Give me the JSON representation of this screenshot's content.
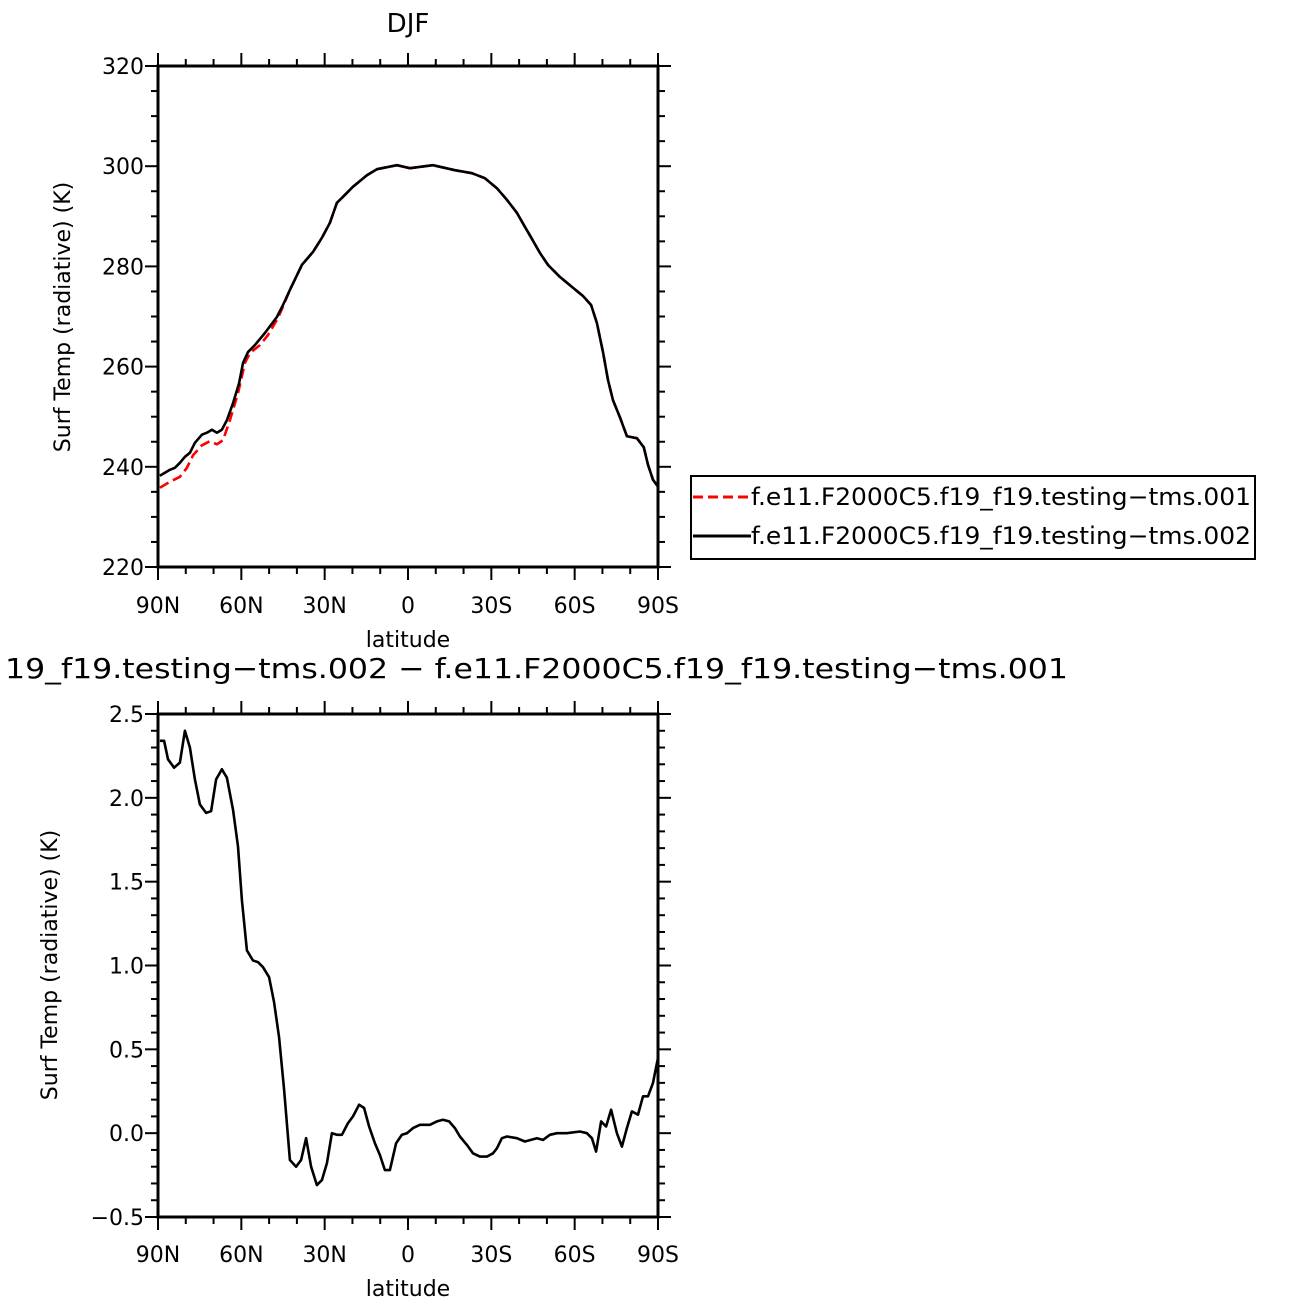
{
  "chart_data": [
    {
      "type": "line",
      "title": "DJF",
      "xlabel": "latitude",
      "ylabel": "Surf Temp (radiative) (K)",
      "xlim": [
        90,
        -90
      ],
      "ylim": [
        220,
        320
      ],
      "xticks": [
        90,
        60,
        30,
        0,
        -30,
        -60,
        -90
      ],
      "xtick_labels": [
        "90N",
        "60N",
        "30N",
        "0",
        "30S",
        "60S",
        "90S"
      ],
      "yticks": [
        220,
        240,
        260,
        280,
        300,
        320
      ],
      "ytick_labels": [
        "220",
        "240",
        "260",
        "280",
        "300",
        "320"
      ],
      "grid": false,
      "legend": "right",
      "series": [
        {
          "name": "f.e11.F2000C5.f19_f19.testing−tms.001",
          "color": "#ff0000",
          "dash": "dashed",
          "lat": [
            89.3,
            85.7,
            82.1,
            79.6,
            77.4,
            74.2,
            71.3,
            68.8,
            66.6,
            64.1,
            61.2,
            58.7,
            56.9,
            53.3,
            50.4,
            46.8,
            45.0,
            42.5,
            38.2,
            34.2,
            31.0,
            28.1,
            25.6,
            23.4,
            19.8,
            14.8,
            11.2,
            4.0,
            -0.7,
            -9.0,
            -16.9,
            -23.0,
            -27.7,
            -32.0,
            -35.6,
            -39.2,
            -42.1,
            -44.6,
            -47.5,
            -50.4,
            -54.7,
            -59.0,
            -63.0,
            -65.9,
            -68.0,
            -70.2,
            -72.0,
            -73.8,
            -76.3,
            -78.8,
            -82.4,
            -84.9,
            -86.4,
            -88.2,
            -90.0
          ],
          "values": [
            235.8,
            237.0,
            238.0,
            239.8,
            242.3,
            244.3,
            245.1,
            244.5,
            245.3,
            249.3,
            254.7,
            260.7,
            262.7,
            264.3,
            266.3,
            269.7,
            272.0,
            275.3,
            280.3,
            282.9,
            285.7,
            288.7,
            292.7,
            293.9,
            295.9,
            298.2,
            299.4,
            300.2,
            299.6,
            300.2,
            299.2,
            298.6,
            297.6,
            295.6,
            293.3,
            290.7,
            287.9,
            285.5,
            282.7,
            280.3,
            277.9,
            275.9,
            274.1,
            272.3,
            268.7,
            262.9,
            257.3,
            253.3,
            249.9,
            246.1,
            245.7,
            243.9,
            240.4,
            237.4,
            236.0
          ]
        },
        {
          "name": "f.e11.F2000C5.f19_f19.testing−tms.002",
          "color": "#000000",
          "dash": "solid",
          "lat": [
            89.3,
            85.7,
            83.9,
            82.1,
            80.3,
            78.5,
            76.7,
            74.2,
            72.4,
            70.6,
            68.8,
            67.0,
            65.2,
            63.0,
            60.8,
            59.4,
            57.6,
            55.1,
            51.5,
            47.2,
            45.0,
            42.5,
            38.2,
            34.2,
            31.0,
            28.1,
            25.6,
            23.4,
            19.8,
            14.8,
            11.2,
            4.0,
            -0.7,
            -9.0,
            -16.9,
            -23.0,
            -27.7,
            -32.0,
            -35.6,
            -39.2,
            -42.1,
            -44.6,
            -47.5,
            -50.4,
            -54.7,
            -59.0,
            -63.0,
            -65.9,
            -68.0,
            -70.2,
            -72.0,
            -73.8,
            -76.3,
            -78.8,
            -82.4,
            -84.9,
            -86.4,
            -88.2,
            -90.0
          ],
          "values": [
            238.2,
            239.4,
            239.8,
            240.8,
            242.0,
            242.8,
            244.8,
            246.4,
            246.8,
            247.4,
            246.8,
            247.4,
            249.3,
            252.7,
            256.7,
            260.7,
            262.9,
            264.3,
            266.7,
            269.9,
            272.3,
            275.3,
            280.3,
            282.9,
            285.7,
            288.7,
            292.7,
            293.9,
            295.9,
            298.2,
            299.4,
            300.2,
            299.6,
            300.2,
            299.2,
            298.6,
            297.6,
            295.6,
            293.3,
            290.7,
            287.9,
            285.5,
            282.7,
            280.3,
            277.9,
            275.9,
            274.1,
            272.3,
            268.7,
            262.9,
            257.3,
            253.3,
            249.9,
            246.1,
            245.7,
            243.9,
            240.4,
            237.4,
            236.0
          ]
        }
      ]
    },
    {
      "type": "line",
      "title": "19_f19.testing−tms.002 − f.e11.F2000C5.f19_f19.testing−tms.001",
      "xlabel": "latitude",
      "ylabel": "Surf Temp (radiative) (K)",
      "xlim": [
        90,
        -90
      ],
      "ylim": [
        -0.5,
        2.5
      ],
      "xticks": [
        90,
        60,
        30,
        0,
        -30,
        -60,
        -90
      ],
      "xtick_labels": [
        "90N",
        "60N",
        "30N",
        "0",
        "30S",
        "60S",
        "90S"
      ],
      "yticks": [
        -0.5,
        0.0,
        0.5,
        1.0,
        1.5,
        2.0,
        2.5
      ],
      "ytick_labels": [
        "−0.5",
        "0.0",
        "0.5",
        "1.0",
        "1.5",
        "2.0",
        "2.5"
      ],
      "grid": false,
      "series": [
        {
          "color": "#000000",
          "dash": "solid",
          "lat": [
            89.3,
            87.8,
            86.4,
            84.2,
            82.1,
            80.3,
            78.5,
            76.7,
            74.9,
            72.7,
            70.9,
            69.1,
            67.0,
            65.2,
            63.0,
            61.2,
            59.8,
            58.0,
            55.8,
            54.0,
            52.2,
            50.0,
            48.2,
            46.4,
            44.6,
            42.5,
            40.3,
            38.5,
            36.7,
            34.9,
            32.8,
            31.0,
            29.2,
            27.4,
            25.6,
            23.8,
            21.6,
            19.8,
            17.6,
            15.8,
            14.0,
            11.9,
            10.1,
            8.3,
            6.5,
            4.3,
            2.2,
            0.4,
            -1.8,
            -4.3,
            -7.9,
            -10.4,
            -12.6,
            -14.8,
            -16.9,
            -18.7,
            -21.2,
            -23.4,
            -25.9,
            -28.4,
            -30.6,
            -32.0,
            -33.8,
            -35.6,
            -39.2,
            -42.1,
            -46.4,
            -48.6,
            -51.1,
            -53.6,
            -57.2,
            -61.9,
            -64.4,
            -66.2,
            -67.7,
            -69.5,
            -71.3,
            -73.1,
            -75.2,
            -77.0,
            -78.8,
            -80.6,
            -82.8,
            -84.6,
            -86.4,
            -88.2,
            -90.0
          ],
          "values": [
            2.34,
            2.34,
            2.23,
            2.18,
            2.21,
            2.4,
            2.3,
            2.11,
            1.96,
            1.91,
            1.92,
            2.11,
            2.17,
            2.12,
            1.93,
            1.71,
            1.39,
            1.09,
            1.03,
            1.02,
            0.99,
            0.93,
            0.78,
            0.57,
            0.26,
            -0.16,
            -0.2,
            -0.16,
            -0.03,
            -0.2,
            -0.31,
            -0.28,
            -0.18,
            0.0,
            -0.01,
            -0.01,
            0.06,
            0.1,
            0.17,
            0.15,
            0.04,
            -0.06,
            -0.13,
            -0.22,
            -0.22,
            -0.06,
            -0.01,
            0.0,
            0.03,
            0.05,
            0.05,
            0.07,
            0.08,
            0.07,
            0.03,
            -0.02,
            -0.07,
            -0.12,
            -0.14,
            -0.14,
            -0.12,
            -0.09,
            -0.03,
            -0.02,
            -0.03,
            -0.05,
            -0.03,
            -0.04,
            -0.01,
            0.0,
            0.0,
            0.01,
            0.0,
            -0.03,
            -0.11,
            0.07,
            0.04,
            0.14,
            0.0,
            -0.08,
            0.03,
            0.13,
            0.11,
            0.22,
            0.22,
            0.3,
            0.45
          ]
        }
      ]
    }
  ]
}
